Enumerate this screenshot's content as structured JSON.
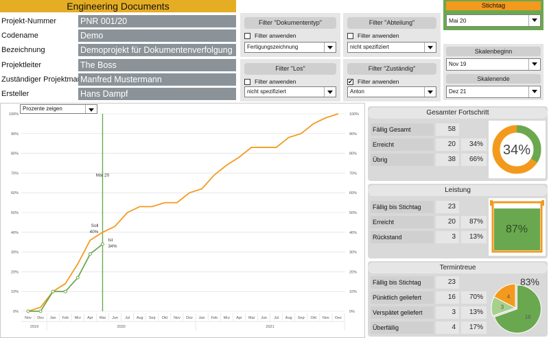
{
  "header": {
    "title": "Engineering Documents"
  },
  "project": [
    {
      "label": "Projekt-Nummer",
      "value": "PNR 001/20"
    },
    {
      "label": "Codename",
      "value": "Demo"
    },
    {
      "label": "Bezeichnung",
      "value": "Demoprojekt für Dokumentenverfolgung"
    },
    {
      "label": "Projektleiter",
      "value": "The Boss"
    },
    {
      "label": "Zuständiger Projektmanager",
      "value": "Manfred Mustermann"
    },
    {
      "label": "Ersteller",
      "value": "Hans Dampf"
    }
  ],
  "filters": {
    "dokumententyp": {
      "title": "Filter \"Dokumententyp\"",
      "check_label": "Filter anwenden",
      "checked": false,
      "value": "Fertigungszeichnung"
    },
    "abteilung": {
      "title": "Filter \"Abteilung\"",
      "check_label": "Filter anwenden",
      "checked": false,
      "value": "nicht spezifiziert"
    },
    "los": {
      "title": "Filter \"Los\"",
      "check_label": "Filter anwenden",
      "checked": false,
      "value": "nicht spezifiziert"
    },
    "zustaendig": {
      "title": "Filter \"Zuständig\"",
      "check_label": "Filter anwenden",
      "checked": true,
      "check_mark": "✔",
      "value": "Anton"
    }
  },
  "stichtag": {
    "title": "Stichtag",
    "value": "Mai 20"
  },
  "scale": {
    "begin_title": "Skalenbeginn",
    "begin_value": "Nov 19",
    "end_title": "Skalenende",
    "end_value": "Dez 21"
  },
  "chart_control": {
    "value": "Prozente zeigen"
  },
  "chart_data": {
    "type": "line",
    "x": [
      "Nov",
      "Dez",
      "Jan",
      "Feb",
      "Mrz",
      "Apr",
      "Mai",
      "Jun",
      "Jul",
      "Aug",
      "Sep",
      "Okt",
      "Nov",
      "Dez",
      "Jan",
      "Feb",
      "Mrz",
      "Apr",
      "Mai",
      "Jun",
      "Jul",
      "Aug",
      "Sep",
      "Okt",
      "Nov",
      "Dez"
    ],
    "year_labels": [
      {
        "label": "2019",
        "from": 0,
        "to": 1
      },
      {
        "label": "2020",
        "from": 2,
        "to": 13
      },
      {
        "label": "2021",
        "from": 14,
        "to": 25
      }
    ],
    "ylim": [
      0,
      100
    ],
    "yticks": [
      "0%",
      "10%",
      "20%",
      "30%",
      "40%",
      "50%",
      "60%",
      "70%",
      "80%",
      "90%",
      "100%"
    ],
    "series": [
      {
        "name": "Soll",
        "color": "#f39a1e",
        "values": [
          0,
          2,
          10,
          14,
          24,
          36,
          40,
          43,
          50,
          53,
          53,
          55,
          55,
          60,
          62,
          69,
          74,
          78,
          83,
          83,
          83,
          88,
          90,
          95,
          98,
          100
        ]
      },
      {
        "name": "Ist",
        "color": "#6aa84f",
        "values": [
          0,
          0,
          10,
          10,
          17,
          29,
          34,
          null,
          null,
          null,
          null,
          null,
          null,
          null,
          null,
          null,
          null,
          null,
          null,
          null,
          null,
          null,
          null,
          null,
          null,
          null
        ]
      }
    ],
    "stichtag_index": 6,
    "stichtag_label": "Mai 20",
    "annotations": {
      "soll_name": "Soll",
      "soll_pct": "40%",
      "ist_name": "Ist",
      "ist_pct": "34%"
    }
  },
  "panels": {
    "fortschritt": {
      "title": "Gesamter Fortschritt",
      "rows": [
        {
          "label": "Fällig Gesamt",
          "num": "58",
          "pct": ""
        },
        {
          "label": "Erreicht",
          "num": "20",
          "pct": "34%"
        },
        {
          "label": "Übrig",
          "num": "38",
          "pct": "66%"
        }
      ],
      "gauge_value": 34,
      "gauge_label": "34%"
    },
    "leistung": {
      "title": "Leistung",
      "rows": [
        {
          "label": "Fällig bis Stichtag",
          "num": "23",
          "pct": ""
        },
        {
          "label": "Erreicht",
          "num": "20",
          "pct": "87%"
        },
        {
          "label": "Rückstand",
          "num": "3",
          "pct": "13%"
        }
      ],
      "gauge_value": 87,
      "gauge_label": "87%"
    },
    "termintreue": {
      "title": "Termintreue",
      "rows": [
        {
          "label": "Fällig bis Stichtag",
          "num": "23",
          "pct": ""
        },
        {
          "label": "Pünktlich geliefert",
          "num": "16",
          "pct": "70%"
        },
        {
          "label": "Verspätet geliefert",
          "num": "3",
          "pct": "13%"
        },
        {
          "label": "Überfällig",
          "num": "4",
          "pct": "17%"
        }
      ],
      "pie_values": [
        16,
        3,
        4
      ],
      "pie_labels": [
        "16",
        "3",
        "4"
      ],
      "pie_colors": [
        "#6aa84f",
        "#a8d08d",
        "#f39a1e"
      ],
      "pie_pct_label": "83%"
    }
  }
}
